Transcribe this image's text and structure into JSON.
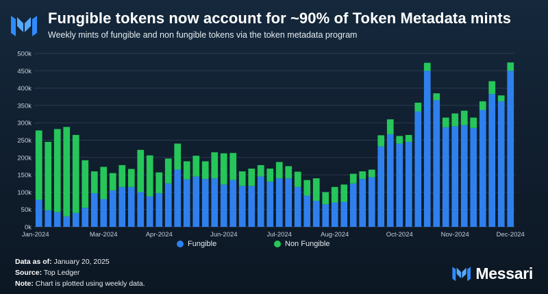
{
  "header": {
    "title": "Fungible tokens now account for ~90% of Token Metadata mints",
    "subtitle": "Weekly mints of fungible and non fungible tokens via the token metadata program",
    "logo_icon": "messari-m-icon"
  },
  "colors": {
    "fungible": "#2f80ed",
    "non_fungible": "#26c65a",
    "grid": "#2a3b4f",
    "axis_text": "#c8d0da"
  },
  "chart_data": {
    "type": "bar",
    "stacked": true,
    "title": "Fungible tokens now account for ~90% of Token Metadata mints",
    "subtitle": "Weekly mints of fungible and non fungible tokens via the token metadata program",
    "ylim": [
      0,
      500000
    ],
    "yticks": [
      0,
      50000,
      100000,
      150000,
      200000,
      250000,
      300000,
      350000,
      400000,
      450000,
      500000
    ],
    "ytick_labels": [
      "0k",
      "50k",
      "100k",
      "150k",
      "200k",
      "250k",
      "300k",
      "350k",
      "400k",
      "450k",
      "500k"
    ],
    "xtick_labels": [
      "Jan-2024",
      "Mar-2024",
      "Apr-2024",
      "Jun-2024",
      "Jul-2024",
      "Aug-2024",
      "Oct-2024",
      "Nov-2024",
      "Dec-2024"
    ],
    "xtick_indices": [
      0,
      7,
      13,
      20,
      26,
      32,
      39,
      45,
      51
    ],
    "grid": true,
    "legend_position": "bottom-center",
    "series": [
      {
        "name": "Fungible",
        "values": [
          78000,
          48000,
          42000,
          30000,
          40000,
          55000,
          97000,
          80000,
          105000,
          115000,
          115000,
          100000,
          88000,
          97000,
          125000,
          165000,
          137000,
          145000,
          138000,
          140000,
          122000,
          135000,
          118000,
          118000,
          145000,
          130000,
          140000,
          140000,
          115000,
          90000,
          75000,
          65000,
          70000,
          72000,
          125000,
          138000,
          143000,
          232000,
          267000,
          240000,
          245000,
          333000,
          450000,
          365000,
          287000,
          290000,
          293000,
          285000,
          337000,
          383000,
          362000,
          450000
        ]
      },
      {
        "name": "Non Fungible",
        "values": [
          200000,
          197000,
          240000,
          258000,
          225000,
          137000,
          63000,
          93000,
          50000,
          63000,
          52000,
          122000,
          118000,
          60000,
          72000,
          75000,
          52000,
          60000,
          51000,
          75000,
          90000,
          78000,
          42000,
          50000,
          33000,
          38000,
          47000,
          35000,
          44000,
          45000,
          65000,
          35000,
          45000,
          50000,
          28000,
          22000,
          22000,
          32000,
          43000,
          22000,
          20000,
          25000,
          23000,
          20000,
          28000,
          37000,
          42000,
          30000,
          25000,
          37000,
          17000,
          24000
        ]
      }
    ]
  },
  "legend": {
    "fungible_label": "Fungible",
    "non_fungible_label": "Non Fungible"
  },
  "footer": {
    "date_label": "Data as of:",
    "date_value": "January 20, 2025",
    "source_label": "Source:",
    "source_value": "Top Ledger",
    "note_label": "Note:",
    "note_value": "Chart is plotted using weekly data."
  },
  "brand": {
    "name": "Messari",
    "icon": "messari-m-icon"
  }
}
